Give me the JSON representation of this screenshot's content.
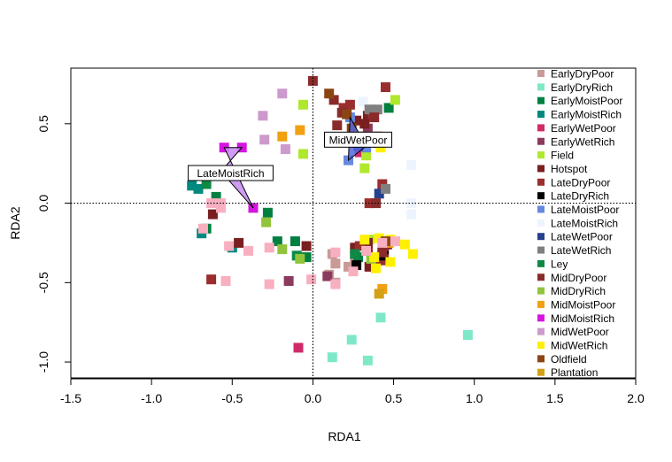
{
  "chart_data": {
    "type": "scatter",
    "title": "",
    "xlabel": "RDA1",
    "ylabel": "RDA2",
    "xlim": [
      -1.5,
      2.0
    ],
    "ylim": [
      -1.1,
      0.85
    ],
    "xticks": [
      -1.5,
      -1.0,
      -0.5,
      0.0,
      0.5,
      1.0,
      1.5,
      2.0
    ],
    "xtick_labels": [
      "-1.5",
      "-1.0",
      "-0.5",
      "0.0",
      "0.5",
      "1.0",
      "1.5",
      "2.0"
    ],
    "yticks": [
      -1.0,
      -0.5,
      0.0,
      0.5
    ],
    "ytick_labels": [
      "-1.0",
      "-0.5",
      "0.0",
      "0.5"
    ],
    "reference_lines": {
      "x": 0,
      "y": 0,
      "style": "dotted"
    },
    "legend_position": "right",
    "groups": [
      {
        "name": "EarlyDryPoor",
        "color": "#C99A96",
        "points": [
          [
            0.12,
            -0.32
          ],
          [
            0.14,
            -0.38
          ],
          [
            0.22,
            -0.4
          ],
          [
            0.26,
            -0.34
          ],
          [
            0.14,
            -0.5
          ],
          [
            0.1,
            -0.45
          ]
        ]
      },
      {
        "name": "EarlyDryRich",
        "color": "#7FE8C8",
        "points": [
          [
            0.42,
            -0.72
          ],
          [
            0.24,
            -0.86
          ],
          [
            0.12,
            -0.97
          ],
          [
            0.34,
            -0.99
          ],
          [
            0.96,
            -0.83
          ]
        ]
      },
      {
        "name": "EarlyMoistPoor",
        "color": "#008040",
        "points": [
          [
            -0.6,
            0.04
          ],
          [
            -0.66,
            -0.16
          ],
          [
            -0.28,
            -0.06
          ],
          [
            -0.22,
            -0.24
          ],
          [
            -0.11,
            -0.24
          ],
          [
            0.31,
            0.37
          ],
          [
            0.47,
            0.6
          ],
          [
            0.28,
            -0.34
          ],
          [
            -0.04,
            -0.34
          ]
        ]
      },
      {
        "name": "EarlyMoistRich",
        "color": "#00897F",
        "points": [
          [
            -0.75,
            0.11
          ],
          [
            -0.71,
            0.09
          ],
          [
            -0.69,
            -0.19
          ],
          [
            -0.5,
            -0.28
          ]
        ]
      },
      {
        "name": "EarlyWetPoor",
        "color": "#D02B69",
        "points": [
          [
            -0.09,
            -0.91
          ],
          [
            0.29,
            0.32
          ]
        ]
      },
      {
        "name": "EarlyWetRich",
        "color": "#8B3B5E",
        "points": [
          [
            -0.15,
            -0.49
          ],
          [
            0.09,
            -0.46
          ],
          [
            0.34,
            0.47
          ]
        ]
      },
      {
        "name": "Field",
        "color": "#AFE82D",
        "points": [
          [
            -0.06,
            0.62
          ],
          [
            -0.06,
            0.31
          ],
          [
            0.32,
            0.22
          ],
          [
            0.33,
            0.3
          ],
          [
            0.51,
            0.65
          ],
          [
            0.35,
            -0.23
          ]
        ]
      },
      {
        "name": "Hotspot",
        "color": "#7A1F1F",
        "points": [
          [
            -0.62,
            -0.07
          ],
          [
            -0.46,
            -0.25
          ],
          [
            -0.04,
            -0.27
          ],
          [
            0.34,
            -0.25
          ],
          [
            0.34,
            -0.3
          ],
          [
            0.35,
            -0.4
          ],
          [
            0.44,
            -0.33
          ],
          [
            0.46,
            -0.26
          ],
          [
            0.26,
            -0.28
          ],
          [
            0.34,
            0.55
          ],
          [
            0.32,
            0.5
          ],
          [
            0.27,
            0.52
          ],
          [
            0.31,
            0.42
          ],
          [
            0.4,
            0.42
          ]
        ]
      },
      {
        "name": "LateDryPoor",
        "color": "#9A2E2E",
        "points": [
          [
            -0.63,
            -0.48
          ],
          [
            0.37,
            0.56
          ],
          [
            0.45,
            0.73
          ],
          [
            0.35,
            0.0
          ],
          [
            0.4,
            0.38
          ],
          [
            0.19,
            0.6
          ],
          [
            0.23,
            0.62
          ],
          [
            0.43,
            0.12
          ],
          [
            0.29,
            -0.27
          ],
          [
            0.44,
            -0.3
          ],
          [
            0.42,
            -0.36
          ]
        ]
      },
      {
        "name": "LateDryRich",
        "color": "#000000",
        "points": [
          [
            0.27,
            -0.39
          ],
          [
            0.44,
            -0.29
          ],
          [
            0.43,
            -0.33
          ]
        ]
      },
      {
        "name": "LateMoistPoor",
        "color": "#6688E0",
        "points": [
          [
            0.23,
            0.54
          ],
          [
            0.22,
            0.27
          ],
          [
            0.33,
            0.35
          ]
        ]
      },
      {
        "name": "LateMoistRich",
        "color": "#EEF4FF",
        "points": [
          [
            0.31,
            0.64
          ],
          [
            0.61,
            0.24
          ],
          [
            0.61,
            0.0
          ],
          [
            0.61,
            -0.07
          ]
        ]
      },
      {
        "name": "LateWetPoor",
        "color": "#25408F",
        "points": [
          [
            0.24,
            0.41
          ],
          [
            0.41,
            0.06
          ],
          [
            0.28,
            0.36
          ]
        ]
      },
      {
        "name": "LateWetRich",
        "color": "#808080",
        "points": [
          [
            0.35,
            0.59
          ],
          [
            0.4,
            0.59
          ],
          [
            0.45,
            0.09
          ]
        ]
      },
      {
        "name": "Ley",
        "color": "#0E8A46",
        "points": [
          [
            -0.66,
            0.12
          ],
          [
            0.26,
            -0.32
          ],
          [
            -0.1,
            -0.33
          ]
        ]
      },
      {
        "name": "MidDryPoor",
        "color": "#8A2B2B",
        "points": [
          [
            0.0,
            0.77
          ],
          [
            0.13,
            0.65
          ],
          [
            0.18,
            0.57
          ],
          [
            0.38,
            0.54
          ],
          [
            0.39,
            0.0
          ],
          [
            0.15,
            0.49
          ],
          [
            0.44,
            -0.27
          ],
          [
            0.43,
            -0.31
          ]
        ]
      },
      {
        "name": "MidDryRich",
        "color": "#92C43B",
        "points": [
          [
            -0.29,
            -0.12
          ],
          [
            -0.19,
            -0.29
          ],
          [
            -0.08,
            -0.35
          ],
          [
            0.36,
            -0.35
          ]
        ]
      },
      {
        "name": "MidMoistPoor",
        "color": "#F0A010",
        "points": [
          [
            -0.19,
            0.42
          ],
          [
            -0.08,
            0.46
          ],
          [
            0.13,
            0.39
          ],
          [
            0.43,
            -0.54
          ],
          [
            0.47,
            -0.25
          ]
        ]
      },
      {
        "name": "MidMoistRich",
        "color": "#D516E0",
        "points": [
          [
            -0.37,
            -0.03
          ],
          [
            -0.55,
            0.35
          ],
          [
            -0.44,
            0.35
          ]
        ]
      },
      {
        "name": "MidWetPoor",
        "color": "#CC9ACC",
        "points": [
          [
            -0.19,
            0.69
          ],
          [
            -0.31,
            0.55
          ],
          [
            -0.3,
            0.4
          ],
          [
            -0.17,
            0.34
          ]
        ]
      },
      {
        "name": "MidWetRich",
        "color": "#FFF000",
        "points": [
          [
            0.42,
            0.35
          ],
          [
            0.32,
            -0.23
          ],
          [
            0.41,
            -0.22
          ],
          [
            0.48,
            -0.23
          ],
          [
            0.57,
            -0.26
          ],
          [
            0.62,
            -0.32
          ],
          [
            0.39,
            -0.41
          ],
          [
            0.38,
            -0.34
          ],
          [
            0.48,
            -0.37
          ]
        ]
      },
      {
        "name": "Oldfield",
        "color": "#8B4513",
        "points": [
          [
            0.1,
            0.69
          ],
          [
            0.21,
            0.56
          ],
          [
            0.24,
            0.47
          ],
          [
            0.45,
            -0.24
          ]
        ]
      },
      {
        "name": "Plantation",
        "color": "#D4A017",
        "points": [
          [
            0.41,
            -0.57
          ]
        ]
      },
      {
        "name": "",
        "color": "#F8AFC0",
        "points": [
          [
            -0.63,
            0.0
          ],
          [
            -0.57,
            0.0
          ],
          [
            -0.57,
            -0.03
          ],
          [
            -0.68,
            -0.16
          ],
          [
            -0.52,
            -0.27
          ],
          [
            -0.4,
            -0.3
          ],
          [
            -0.27,
            -0.28
          ],
          [
            -0.54,
            -0.49
          ],
          [
            -0.27,
            -0.51
          ],
          [
            -0.01,
            -0.48
          ],
          [
            0.14,
            -0.51
          ],
          [
            0.25,
            -0.43
          ],
          [
            0.14,
            -0.31
          ],
          [
            0.51,
            -0.24
          ],
          [
            0.43,
            -0.25
          ],
          [
            0.33,
            -0.3
          ]
        ]
      }
    ],
    "hulls": [
      {
        "group": "LateMoistRich",
        "label": "LateMoistRich",
        "fill": "#C58BEE",
        "points": [
          [
            -0.37,
            -0.03
          ],
          [
            -0.55,
            0.35
          ],
          [
            -0.44,
            0.35
          ],
          [
            -0.57,
            0.2
          ]
        ],
        "label_at": [
          -0.51,
          0.19
        ]
      },
      {
        "group": "MidWetPoor",
        "label": "MidWetPoor",
        "fill": "#5566DD",
        "points": [
          [
            0.23,
            0.54
          ],
          [
            0.33,
            0.36
          ],
          [
            0.22,
            0.27
          ]
        ],
        "label_at": [
          0.28,
          0.4
        ]
      }
    ]
  }
}
